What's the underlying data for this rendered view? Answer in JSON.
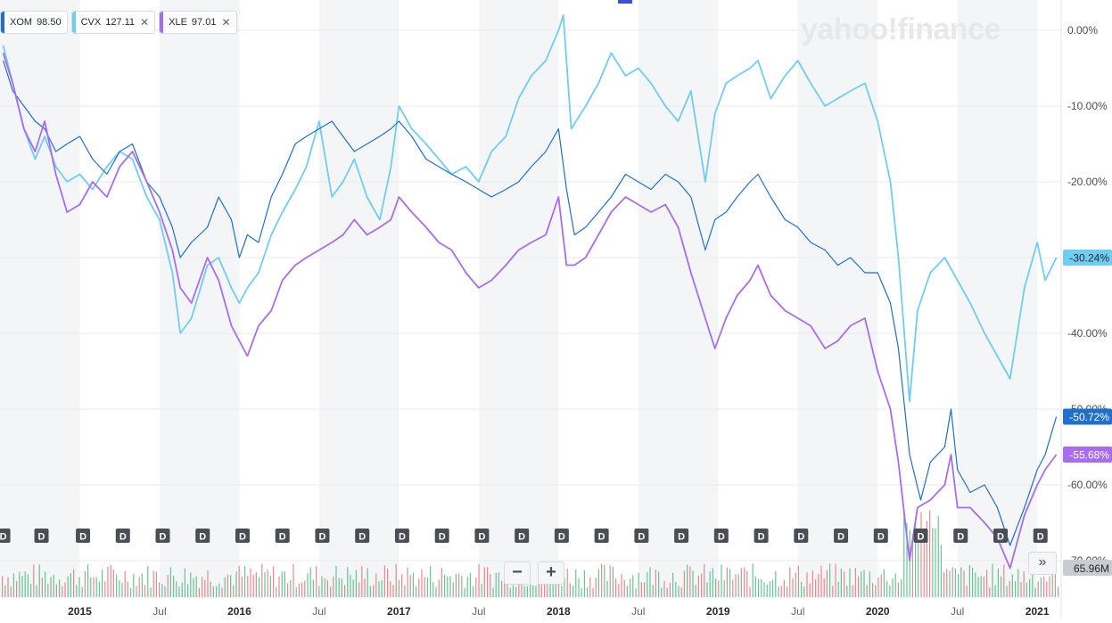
{
  "brand": "yahoo!finance",
  "legend": [
    {
      "symbol": "XOM",
      "price": "98.50",
      "color": "#1f6fcb",
      "removable": false
    },
    {
      "symbol": "CVX",
      "price": "127.11",
      "color": "#70cdf2",
      "removable": true
    },
    {
      "symbol": "XLE",
      "price": "97.01",
      "color": "#a86cf0",
      "removable": true
    }
  ],
  "controls": {
    "zoom_out": "−",
    "zoom_in": "+",
    "more": "»"
  },
  "chart_data": {
    "type": "line",
    "title": "",
    "xlabel": "",
    "ylabel": "",
    "y_axis_position": "right",
    "ylim": [
      -70,
      3
    ],
    "grid": true,
    "legend_placement": "top-left",
    "yticks": [
      {
        "v": 0,
        "label": "0.00%"
      },
      {
        "v": -10,
        "label": "-10.00%"
      },
      {
        "v": -20,
        "label": "-20.00%"
      },
      {
        "v": -30,
        "label": "-30.00%"
      },
      {
        "v": -40,
        "label": "-40.00%"
      },
      {
        "v": -50,
        "label": "-50.00%"
      },
      {
        "v": -60,
        "label": "-60.00%"
      },
      {
        "v": -70,
        "label": "-70.00%"
      }
    ],
    "xlim": [
      2014.5,
      2021.15
    ],
    "xticks": [
      {
        "t": 2015.0,
        "label": "2015"
      },
      {
        "t": 2015.5,
        "label": "Jul"
      },
      {
        "t": 2016.0,
        "label": "2016"
      },
      {
        "t": 2016.5,
        "label": "Jul"
      },
      {
        "t": 2017.0,
        "label": "2017"
      },
      {
        "t": 2017.5,
        "label": "Jul"
      },
      {
        "t": 2018.0,
        "label": "2018"
      },
      {
        "t": 2018.5,
        "label": "Jul"
      },
      {
        "t": 2019.0,
        "label": "2019"
      },
      {
        "t": 2019.5,
        "label": "Jul"
      },
      {
        "t": 2020.0,
        "label": "2020"
      },
      {
        "t": 2020.5,
        "label": "Jul"
      },
      {
        "t": 2021.0,
        "label": "2021"
      }
    ],
    "series": [
      {
        "name": "XOM",
        "color": "#1f6fcb",
        "last_label": "-50.72%",
        "points": [
          [
            2014.52,
            -4
          ],
          [
            2014.58,
            -8
          ],
          [
            2014.65,
            -10
          ],
          [
            2014.72,
            -12
          ],
          [
            2014.78,
            -13
          ],
          [
            2014.85,
            -16
          ],
          [
            2014.92,
            -15
          ],
          [
            2015.0,
            -14
          ],
          [
            2015.08,
            -17
          ],
          [
            2015.17,
            -19
          ],
          [
            2015.25,
            -16
          ],
          [
            2015.33,
            -15
          ],
          [
            2015.42,
            -20
          ],
          [
            2015.5,
            -22
          ],
          [
            2015.58,
            -26
          ],
          [
            2015.63,
            -30
          ],
          [
            2015.7,
            -28
          ],
          [
            2015.8,
            -26
          ],
          [
            2015.87,
            -22
          ],
          [
            2015.95,
            -25
          ],
          [
            2016.0,
            -30
          ],
          [
            2016.05,
            -27
          ],
          [
            2016.12,
            -28
          ],
          [
            2016.2,
            -22
          ],
          [
            2016.27,
            -19
          ],
          [
            2016.35,
            -15
          ],
          [
            2016.42,
            -14
          ],
          [
            2016.5,
            -13
          ],
          [
            2016.58,
            -12
          ],
          [
            2016.65,
            -14
          ],
          [
            2016.72,
            -16
          ],
          [
            2016.8,
            -15
          ],
          [
            2016.88,
            -14
          ],
          [
            2016.95,
            -13
          ],
          [
            2017.0,
            -12
          ],
          [
            2017.08,
            -14
          ],
          [
            2017.17,
            -17
          ],
          [
            2017.25,
            -18
          ],
          [
            2017.33,
            -19
          ],
          [
            2017.42,
            -20
          ],
          [
            2017.5,
            -21
          ],
          [
            2017.58,
            -22
          ],
          [
            2017.67,
            -21
          ],
          [
            2017.75,
            -20
          ],
          [
            2017.83,
            -18
          ],
          [
            2017.92,
            -16
          ],
          [
            2018.0,
            -13
          ],
          [
            2018.05,
            -21
          ],
          [
            2018.1,
            -27
          ],
          [
            2018.17,
            -26
          ],
          [
            2018.25,
            -24
          ],
          [
            2018.33,
            -22
          ],
          [
            2018.42,
            -19
          ],
          [
            2018.5,
            -20
          ],
          [
            2018.58,
            -21
          ],
          [
            2018.67,
            -19
          ],
          [
            2018.75,
            -20
          ],
          [
            2018.83,
            -22
          ],
          [
            2018.92,
            -29
          ],
          [
            2018.98,
            -25
          ],
          [
            2019.05,
            -24
          ],
          [
            2019.12,
            -22
          ],
          [
            2019.2,
            -20
          ],
          [
            2019.25,
            -19
          ],
          [
            2019.33,
            -22
          ],
          [
            2019.42,
            -25
          ],
          [
            2019.5,
            -26
          ],
          [
            2019.58,
            -28
          ],
          [
            2019.67,
            -29
          ],
          [
            2019.75,
            -31
          ],
          [
            2019.83,
            -30
          ],
          [
            2019.92,
            -32
          ],
          [
            2020.0,
            -32
          ],
          [
            2020.08,
            -36
          ],
          [
            2020.13,
            -42
          ],
          [
            2020.2,
            -56
          ],
          [
            2020.27,
            -62
          ],
          [
            2020.33,
            -57
          ],
          [
            2020.42,
            -55
          ],
          [
            2020.46,
            -50
          ],
          [
            2020.5,
            -58
          ],
          [
            2020.58,
            -61
          ],
          [
            2020.67,
            -60
          ],
          [
            2020.75,
            -63
          ],
          [
            2020.83,
            -68
          ],
          [
            2020.92,
            -63
          ],
          [
            2021.0,
            -58
          ],
          [
            2021.05,
            -56
          ],
          [
            2021.12,
            -51
          ]
        ]
      },
      {
        "name": "CVX",
        "color": "#70cdf2",
        "last_label": "-30.24%",
        "points": [
          [
            2014.52,
            -2
          ],
          [
            2014.58,
            -7
          ],
          [
            2014.65,
            -13
          ],
          [
            2014.72,
            -17
          ],
          [
            2014.78,
            -14
          ],
          [
            2014.85,
            -18
          ],
          [
            2014.92,
            -20
          ],
          [
            2015.0,
            -19
          ],
          [
            2015.08,
            -21
          ],
          [
            2015.17,
            -18
          ],
          [
            2015.25,
            -16
          ],
          [
            2015.33,
            -17
          ],
          [
            2015.42,
            -22
          ],
          [
            2015.5,
            -25
          ],
          [
            2015.58,
            -32
          ],
          [
            2015.63,
            -40
          ],
          [
            2015.7,
            -38
          ],
          [
            2015.8,
            -31
          ],
          [
            2015.87,
            -30
          ],
          [
            2015.95,
            -34
          ],
          [
            2016.0,
            -36
          ],
          [
            2016.05,
            -34
          ],
          [
            2016.12,
            -32
          ],
          [
            2016.2,
            -27
          ],
          [
            2016.27,
            -24
          ],
          [
            2016.35,
            -21
          ],
          [
            2016.42,
            -18
          ],
          [
            2016.5,
            -12
          ],
          [
            2016.58,
            -22
          ],
          [
            2016.65,
            -20
          ],
          [
            2016.72,
            -17
          ],
          [
            2016.8,
            -22
          ],
          [
            2016.88,
            -25
          ],
          [
            2016.95,
            -18
          ],
          [
            2017.0,
            -10
          ],
          [
            2017.08,
            -13
          ],
          [
            2017.17,
            -15
          ],
          [
            2017.25,
            -17
          ],
          [
            2017.33,
            -19
          ],
          [
            2017.42,
            -18
          ],
          [
            2017.5,
            -20
          ],
          [
            2017.58,
            -16
          ],
          [
            2017.67,
            -14
          ],
          [
            2017.75,
            -9
          ],
          [
            2017.83,
            -6
          ],
          [
            2017.92,
            -4
          ],
          [
            2018.0,
            0
          ],
          [
            2018.03,
            2
          ],
          [
            2018.08,
            -13
          ],
          [
            2018.17,
            -10
          ],
          [
            2018.25,
            -7
          ],
          [
            2018.33,
            -3
          ],
          [
            2018.42,
            -6
          ],
          [
            2018.5,
            -5
          ],
          [
            2018.58,
            -7
          ],
          [
            2018.67,
            -10
          ],
          [
            2018.75,
            -12
          ],
          [
            2018.83,
            -8
          ],
          [
            2018.92,
            -20
          ],
          [
            2018.98,
            -11
          ],
          [
            2019.05,
            -7
          ],
          [
            2019.12,
            -6
          ],
          [
            2019.2,
            -5
          ],
          [
            2019.25,
            -4
          ],
          [
            2019.33,
            -9
          ],
          [
            2019.42,
            -6
          ],
          [
            2019.5,
            -4
          ],
          [
            2019.58,
            -7
          ],
          [
            2019.67,
            -10
          ],
          [
            2019.75,
            -9
          ],
          [
            2019.83,
            -8
          ],
          [
            2019.92,
            -7
          ],
          [
            2020.0,
            -12
          ],
          [
            2020.08,
            -20
          ],
          [
            2020.13,
            -30
          ],
          [
            2020.2,
            -49
          ],
          [
            2020.25,
            -37
          ],
          [
            2020.33,
            -32
          ],
          [
            2020.42,
            -30
          ],
          [
            2020.5,
            -33
          ],
          [
            2020.58,
            -36
          ],
          [
            2020.67,
            -40
          ],
          [
            2020.75,
            -43
          ],
          [
            2020.83,
            -46
          ],
          [
            2020.92,
            -34
          ],
          [
            2021.0,
            -28
          ],
          [
            2021.05,
            -33
          ],
          [
            2021.12,
            -30
          ]
        ]
      },
      {
        "name": "XLE",
        "color": "#a86cf0",
        "last_label": "-55.68%",
        "points": [
          [
            2014.52,
            -3
          ],
          [
            2014.58,
            -7
          ],
          [
            2014.65,
            -13
          ],
          [
            2014.72,
            -16
          ],
          [
            2014.78,
            -12
          ],
          [
            2014.85,
            -19
          ],
          [
            2014.92,
            -24
          ],
          [
            2015.0,
            -23
          ],
          [
            2015.08,
            -20
          ],
          [
            2015.17,
            -22
          ],
          [
            2015.25,
            -18
          ],
          [
            2015.33,
            -16
          ],
          [
            2015.42,
            -20
          ],
          [
            2015.5,
            -24
          ],
          [
            2015.58,
            -29
          ],
          [
            2015.63,
            -34
          ],
          [
            2015.7,
            -36
          ],
          [
            2015.8,
            -30
          ],
          [
            2015.87,
            -33
          ],
          [
            2015.95,
            -39
          ],
          [
            2016.0,
            -41
          ],
          [
            2016.05,
            -43
          ],
          [
            2016.12,
            -39
          ],
          [
            2016.2,
            -37
          ],
          [
            2016.27,
            -33
          ],
          [
            2016.35,
            -31
          ],
          [
            2016.42,
            -30
          ],
          [
            2016.5,
            -29
          ],
          [
            2016.58,
            -28
          ],
          [
            2016.65,
            -27
          ],
          [
            2016.72,
            -25
          ],
          [
            2016.8,
            -27
          ],
          [
            2016.88,
            -26
          ],
          [
            2016.95,
            -25
          ],
          [
            2017.0,
            -22
          ],
          [
            2017.08,
            -24
          ],
          [
            2017.17,
            -26
          ],
          [
            2017.25,
            -28
          ],
          [
            2017.33,
            -29
          ],
          [
            2017.42,
            -32
          ],
          [
            2017.5,
            -34
          ],
          [
            2017.58,
            -33
          ],
          [
            2017.67,
            -31
          ],
          [
            2017.75,
            -29
          ],
          [
            2017.83,
            -28
          ],
          [
            2017.92,
            -27
          ],
          [
            2018.0,
            -22
          ],
          [
            2018.05,
            -31
          ],
          [
            2018.1,
            -31
          ],
          [
            2018.17,
            -30
          ],
          [
            2018.25,
            -27
          ],
          [
            2018.33,
            -24
          ],
          [
            2018.42,
            -22
          ],
          [
            2018.5,
            -23
          ],
          [
            2018.58,
            -24
          ],
          [
            2018.67,
            -23
          ],
          [
            2018.75,
            -26
          ],
          [
            2018.83,
            -32
          ],
          [
            2018.92,
            -38
          ],
          [
            2018.98,
            -42
          ],
          [
            2019.05,
            -38
          ],
          [
            2019.12,
            -35
          ],
          [
            2019.2,
            -33
          ],
          [
            2019.25,
            -31
          ],
          [
            2019.33,
            -35
          ],
          [
            2019.42,
            -37
          ],
          [
            2019.5,
            -38
          ],
          [
            2019.58,
            -39
          ],
          [
            2019.67,
            -42
          ],
          [
            2019.75,
            -41
          ],
          [
            2019.83,
            -39
          ],
          [
            2019.92,
            -38
          ],
          [
            2020.0,
            -45
          ],
          [
            2020.08,
            -50
          ],
          [
            2020.13,
            -57
          ],
          [
            2020.2,
            -70
          ],
          [
            2020.25,
            -63
          ],
          [
            2020.33,
            -62
          ],
          [
            2020.42,
            -60
          ],
          [
            2020.46,
            -56
          ],
          [
            2020.5,
            -63
          ],
          [
            2020.58,
            -63
          ],
          [
            2020.67,
            -65
          ],
          [
            2020.75,
            -67
          ],
          [
            2020.83,
            -71
          ],
          [
            2020.92,
            -64
          ],
          [
            2021.0,
            -60
          ],
          [
            2021.05,
            -58
          ],
          [
            2021.12,
            -56
          ]
        ]
      }
    ],
    "dividend_marker": "D",
    "dividends": [
      2014.52,
      2014.76,
      2015.02,
      2015.27,
      2015.52,
      2015.77,
      2016.02,
      2016.27,
      2016.52,
      2016.77,
      2017.02,
      2017.27,
      2017.52,
      2017.77,
      2018.02,
      2018.27,
      2018.52,
      2018.77,
      2019.02,
      2019.27,
      2019.52,
      2019.77,
      2020.02,
      2020.27,
      2020.52,
      2020.77,
      2021.02
    ],
    "volume_label": "65.96M"
  }
}
